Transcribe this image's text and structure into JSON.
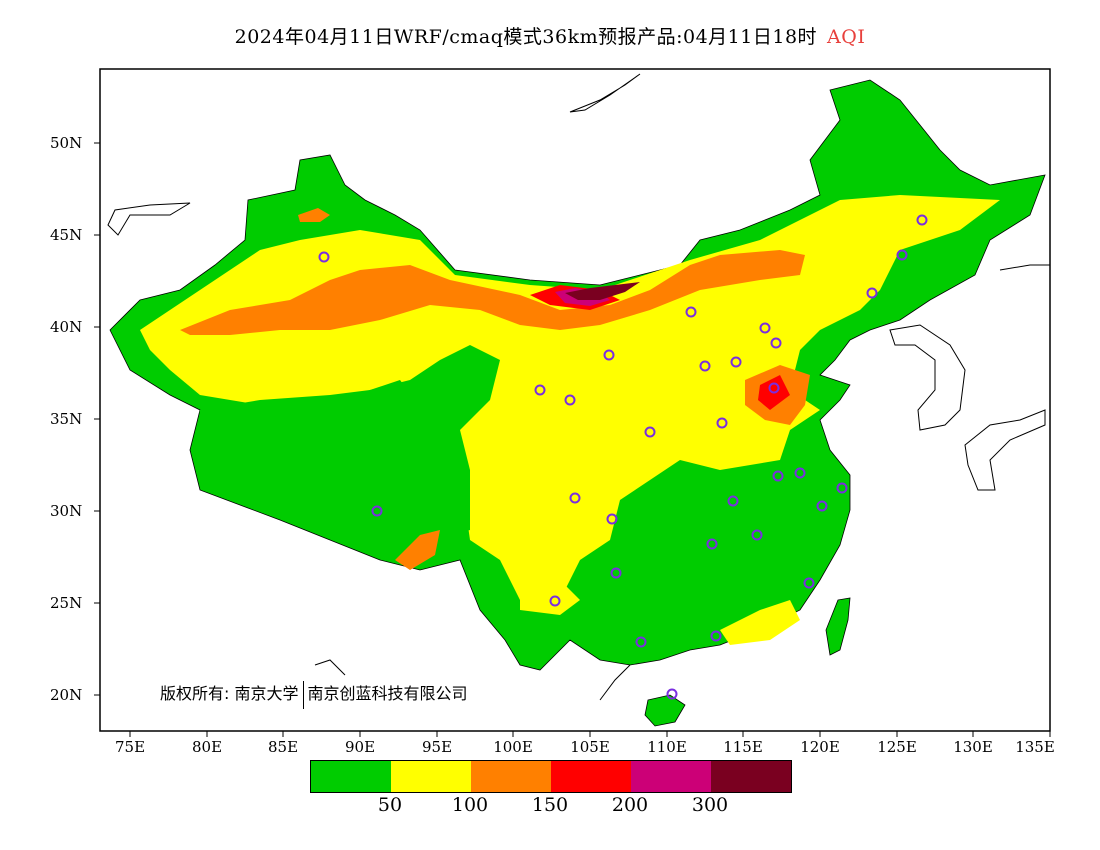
{
  "title": {
    "main": "2024年04月11日WRF/cmaq模式36km预报产品:04月11日18时",
    "pollutant": "AQI",
    "pollutant_color": "#e8403c"
  },
  "axes": {
    "lat_labels": [
      "50N",
      "45N",
      "40N",
      "35N",
      "30N",
      "25N",
      "20N"
    ],
    "lon_labels": [
      "75E",
      "80E",
      "85E",
      "90E",
      "95E",
      "100E",
      "105E",
      "110E",
      "115E",
      "120E",
      "125E",
      "130E",
      "135E"
    ]
  },
  "copyright": {
    "prefix": "版权所有:",
    "org1": "南京大学",
    "org2": "南京创蓝科技有限公司"
  },
  "legend": {
    "colors": [
      "#00cc00",
      "#ffff00",
      "#ff8000",
      "#ff0000",
      "#cc0077",
      "#7a0020"
    ],
    "ticks": [
      "50",
      "100",
      "150",
      "200",
      "300"
    ]
  },
  "colors": {
    "good": "#00cc00",
    "moderate": "#ffff00",
    "usg": "#ff8000",
    "unhealthy": "#ff0000",
    "very_unhealthy": "#cc0077",
    "hazardous": "#7a0020",
    "station_marker": "#7a2ee0"
  }
}
